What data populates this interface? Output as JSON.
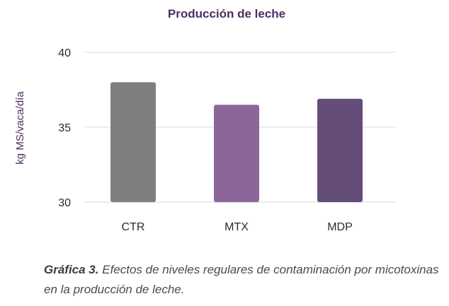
{
  "chart_data": {
    "type": "bar",
    "title": "Producción de leche",
    "xlabel": "",
    "ylabel": "kg MS/vaca/día",
    "categories": [
      "CTR",
      "MTX",
      "MDP"
    ],
    "values": [
      38.0,
      36.5,
      36.9
    ],
    "ylim": [
      30,
      40
    ],
    "yticks": [
      30,
      35,
      40
    ],
    "grid": true,
    "legend": "none",
    "colors": [
      "#7f7f7f",
      "#8b6799",
      "#654d7a"
    ]
  },
  "caption": {
    "label": "Gráfica 3.",
    "text": "Efectos de niveles regulares de contaminación por micotoxinas en la producción de leche."
  }
}
